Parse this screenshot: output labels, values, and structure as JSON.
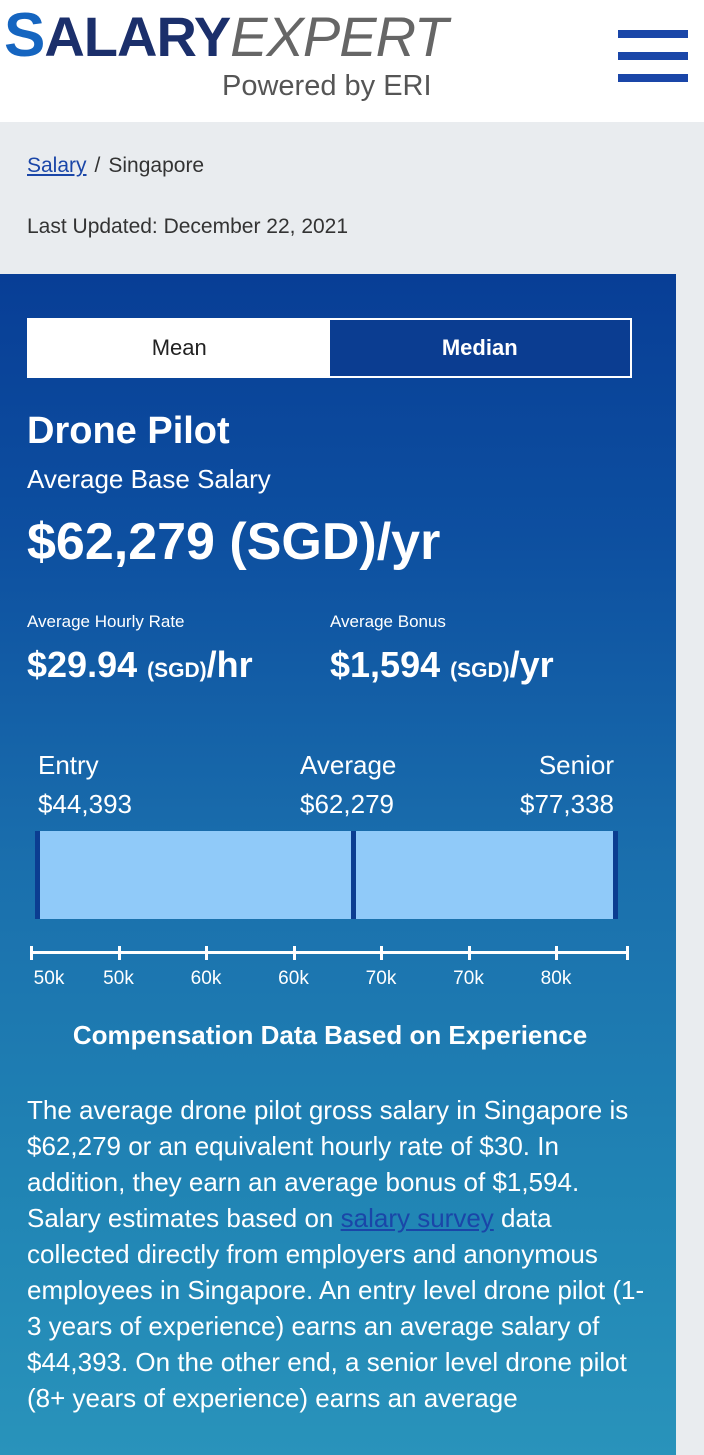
{
  "header": {
    "logo_s": "S",
    "logo_alary": "ALARY",
    "logo_expert": "EXPERT",
    "logo_sub": "Powered by ERI",
    "menu_icon": "hamburger-menu-icon"
  },
  "breadcrumb": {
    "link": "Salary",
    "separator": "/",
    "current": "Singapore"
  },
  "last_updated": "Last Updated: December 22, 2021",
  "toggle": {
    "mean": "Mean",
    "median": "Median",
    "selected": "Median"
  },
  "job": {
    "title": "Drone Pilot",
    "salary_label": "Average Base Salary",
    "salary": "$62,279 (SGD)/yr"
  },
  "stats": {
    "hourly_label": "Average Hourly Rate",
    "hourly_amount": "$29.94 ",
    "hourly_currency": "(SGD)",
    "hourly_unit": "/hr",
    "bonus_label": "Average Bonus",
    "bonus_amount": "$1,594 ",
    "bonus_currency": "(SGD)",
    "bonus_unit": "/yr"
  },
  "range": {
    "entry_label": "Entry",
    "entry_value": "$44,393",
    "average_label": "Average",
    "average_value": "$62,279",
    "senior_label": "Senior",
    "senior_value": "$77,338",
    "entry_num": 44393,
    "average_num": 62279,
    "senior_num": 77338,
    "bar_color": "#90caf9",
    "marker_color": "#0b3d91"
  },
  "axis_ticks": [
    "50k",
    "50k",
    "60k",
    "60k",
    "70k",
    "70k",
    "80k"
  ],
  "comp_heading": "Compensation Data Based on Experience",
  "description": {
    "part1": "The average drone pilot gross salary in Singapore is $62,279 or an equivalent hourly rate of $30. In addition, they earn an average bonus of $1,594. Salary estimates based on ",
    "link": "salary survey",
    "part2": " data collected directly from employers and anonymous employees in Singapore. An entry level drone pilot (1-3 years of experience) earns an average salary of $44,393. On the other end, a senior level drone pilot (8+ years of experience) earns an average"
  },
  "colors": {
    "brand_blue": "#1a46a8",
    "card_top": "#083e96",
    "card_bottom": "#2993bb"
  }
}
